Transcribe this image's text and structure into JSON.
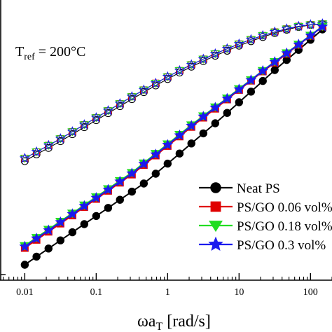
{
  "chart_data": {
    "type": "line",
    "xscale": "log",
    "xlim": [
      0.0045,
      200
    ],
    "ylim": [
      0,
      1
    ],
    "grid": false,
    "xlabel": {
      "main": "ωa",
      "sub": "T",
      "tail": " [rad/s]"
    },
    "ylabel": "",
    "annotation": {
      "main": "T",
      "sub": "ref",
      "tail": " = 200°C"
    },
    "x_ticks": [
      {
        "value": 0.01,
        "label": "0.01"
      },
      {
        "value": 0.1,
        "label": "0.1"
      },
      {
        "value": 1,
        "label": "1"
      },
      {
        "value": 10,
        "label": "10"
      },
      {
        "value": 100,
        "label": "100"
      }
    ],
    "legend_position": "lower-right",
    "x": [
      0.01,
      0.0146,
      0.0215,
      0.0316,
      0.0464,
      0.0681,
      0.1,
      0.147,
      0.215,
      0.316,
      0.464,
      0.681,
      1,
      1.47,
      2.15,
      3.16,
      4.64,
      6.81,
      10,
      14.7,
      21.5,
      31.6,
      46.4,
      68.1,
      100,
      147
    ],
    "series": [
      {
        "name": "Neat PS",
        "color": "#000000",
        "marker": "circle",
        "values": [
          0.055,
          0.084,
          0.113,
          0.142,
          0.171,
          0.2,
          0.229,
          0.258,
          0.287,
          0.316,
          0.345,
          0.38,
          0.416,
          0.452,
          0.488,
          0.524,
          0.56,
          0.597,
          0.635,
          0.673,
          0.711,
          0.75,
          0.786,
          0.822,
          0.858,
          0.895
        ]
      },
      {
        "name": "PS/GO 0.06 vol%",
        "color": "#e00000",
        "marker": "square",
        "values": [
          0.115,
          0.144,
          0.173,
          0.202,
          0.231,
          0.261,
          0.29,
          0.319,
          0.348,
          0.377,
          0.411,
          0.445,
          0.479,
          0.513,
          0.547,
          0.58,
          0.612,
          0.645,
          0.679,
          0.712,
          0.745,
          0.776,
          0.808,
          0.84,
          0.872,
          0.905
        ]
      },
      {
        "name": "PS/GO 0.18 vol%",
        "color": "#22dd22",
        "marker": "triangle-down",
        "values": [
          0.123,
          0.152,
          0.181,
          0.21,
          0.239,
          0.268,
          0.297,
          0.326,
          0.355,
          0.384,
          0.418,
          0.452,
          0.486,
          0.52,
          0.554,
          0.586,
          0.618,
          0.65,
          0.683,
          0.715,
          0.748,
          0.78,
          0.811,
          0.842,
          0.874,
          0.906
        ]
      },
      {
        "name": "PS/GO 0.3 vol%",
        "color": "#1a1aee",
        "marker": "star",
        "values": [
          0.12,
          0.149,
          0.178,
          0.207,
          0.236,
          0.265,
          0.294,
          0.323,
          0.352,
          0.381,
          0.415,
          0.449,
          0.483,
          0.517,
          0.551,
          0.584,
          0.616,
          0.648,
          0.681,
          0.714,
          0.747,
          0.779,
          0.81,
          0.841,
          0.873,
          0.905
        ]
      }
    ],
    "open_marker_curves": {
      "values": [
        0.435,
        0.458,
        0.481,
        0.505,
        0.53,
        0.555,
        0.58,
        0.605,
        0.63,
        0.655,
        0.679,
        0.703,
        0.726,
        0.748,
        0.769,
        0.789,
        0.808,
        0.826,
        0.843,
        0.859,
        0.873,
        0.886,
        0.897,
        0.906,
        0.912,
        0.915
      ],
      "neat_ps_values": [
        0.425,
        0.449,
        0.472,
        0.496,
        0.521,
        0.546,
        0.571,
        0.596,
        0.621,
        0.646,
        0.671,
        0.695,
        0.718,
        0.741,
        0.762,
        0.782,
        0.801,
        0.819,
        0.837,
        0.853,
        0.868,
        0.882,
        0.894,
        0.904,
        0.911,
        0.914
      ]
    }
  }
}
